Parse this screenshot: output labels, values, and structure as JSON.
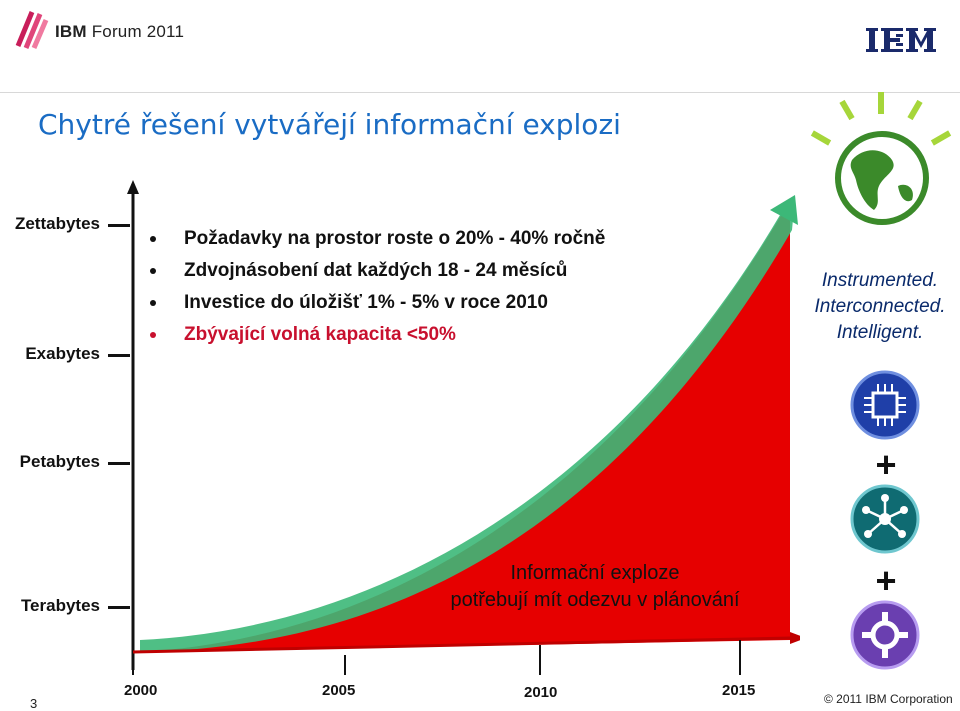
{
  "header": {
    "brand_bold": "IBM",
    "brand_rest": "Forum 2011",
    "logo_text": "IBM"
  },
  "title": "Chytré řešení vytvářejí informační explozi",
  "axis_labels": [
    "Zettabytes",
    "Exabytes",
    "Petabytes",
    "Terabytes"
  ],
  "bullets": [
    "Požadavky na prostor roste o 20% - 40% ročně",
    "Zdvojnásobení dat každých 18 - 24 měsíců",
    "Investice do úložišť 1% - 5% v roce 2010",
    "Zbývající volná kapacita <50%"
  ],
  "chart_note": {
    "line1": "Informační exploze",
    "line2": "potřebují mít odezvu v plánování"
  },
  "years": [
    "2000",
    "2005",
    "2010",
    "2015"
  ],
  "slogan": [
    "Instrumented.",
    "Interconnected.",
    "Intelligent."
  ],
  "plus_sign": "+",
  "footer": {
    "page_number": "3",
    "copyright": "© 2011 IBM Corporation"
  },
  "colors": {
    "title": "#1a6cc4",
    "curve_fill": "#e60000",
    "green_band": "#3cb878",
    "bullet_highlight": "#c8102e",
    "slogan": "#0a2a6b"
  },
  "icons": [
    "smarter-planet-globe-icon",
    "instrumented-chip-icon",
    "interconnected-network-icon",
    "intelligent-gear-icon"
  ]
}
